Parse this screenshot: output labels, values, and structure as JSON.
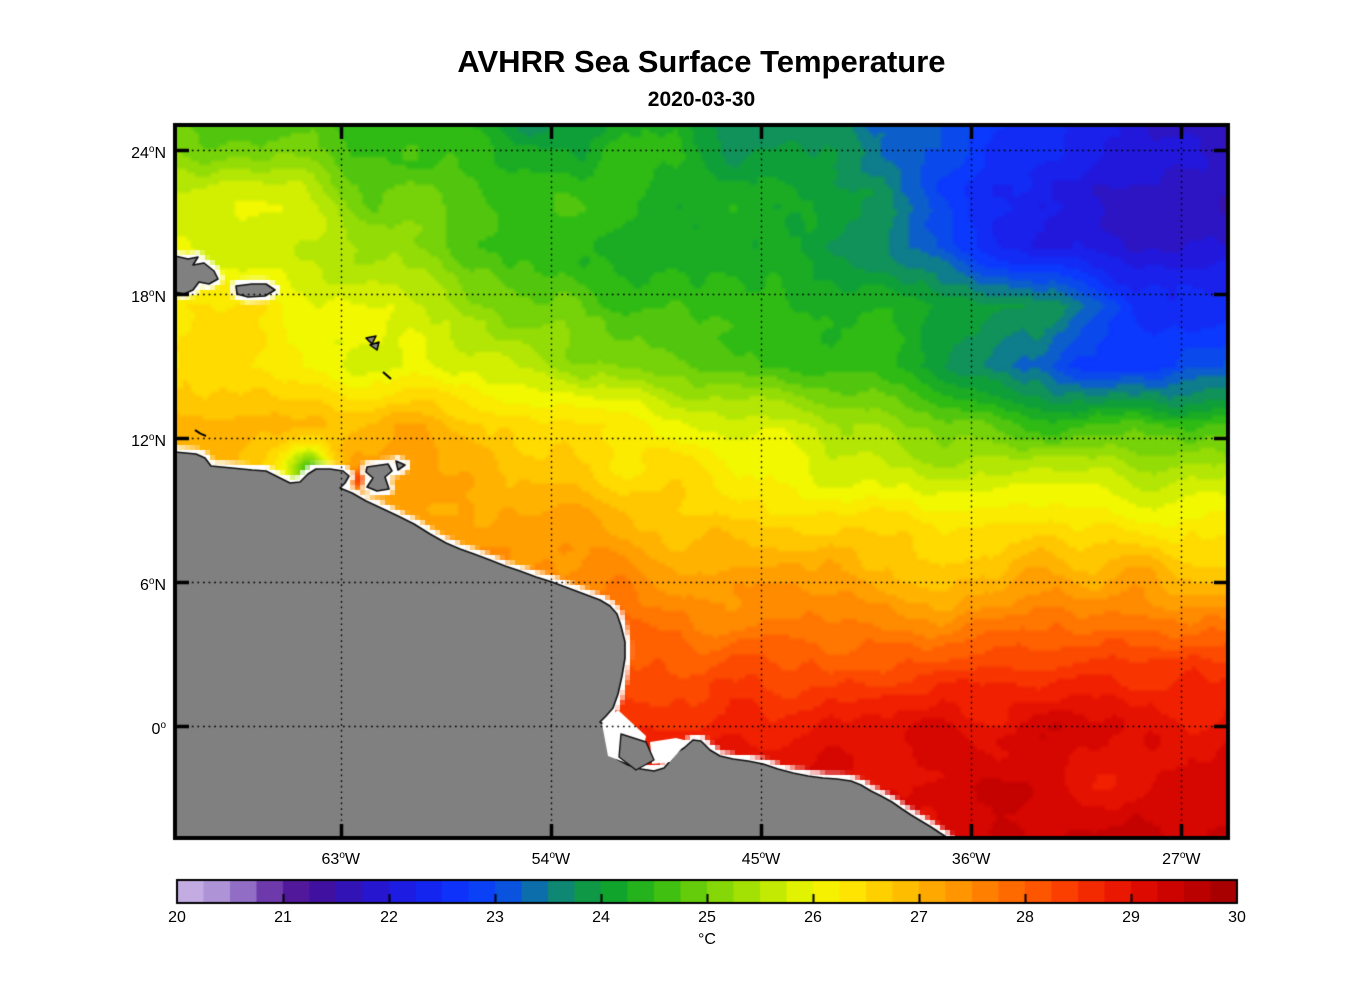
{
  "chart_data": {
    "type": "heatmap",
    "title": "AVHRR Sea Surface Temperature",
    "subtitle": "2020-03-30",
    "grid_on": true,
    "lon_range": [
      -70.1,
      -25.0
    ],
    "lat_range": [
      -4.65,
      25.05
    ],
    "x_axis": {
      "ticks": [
        {
          "value": -63,
          "text": "63°W",
          "pre": "63",
          "sup": "o",
          "post": "W"
        },
        {
          "value": -54,
          "text": "54°W",
          "pre": "54",
          "sup": "o",
          "post": "W"
        },
        {
          "value": -45,
          "text": "45°W",
          "pre": "45",
          "sup": "o",
          "post": "W"
        },
        {
          "value": -36,
          "text": "36°W",
          "pre": "36",
          "sup": "o",
          "post": "W"
        },
        {
          "value": -27,
          "text": "27°W",
          "pre": "27",
          "sup": "o",
          "post": "W"
        }
      ]
    },
    "y_axis": {
      "ticks": [
        {
          "value": 24,
          "text": "24°N",
          "pre": "24",
          "sup": "o",
          "post": "N"
        },
        {
          "value": 18,
          "text": "18°N",
          "pre": "18",
          "sup": "o",
          "post": "N"
        },
        {
          "value": 12,
          "text": "12°N",
          "pre": "12",
          "sup": "o",
          "post": "N"
        },
        {
          "value": 6,
          "text": "6°N",
          "pre": "6",
          "sup": "o",
          "post": "N"
        },
        {
          "value": 0,
          "text": "0°",
          "pre": "0",
          "sup": "o",
          "post": ""
        }
      ]
    },
    "colorbar": {
      "unit": "°C",
      "min": 20,
      "max": 30,
      "step": 0.25,
      "tick_values": [
        20,
        21,
        22,
        23,
        24,
        25,
        26,
        27,
        28,
        29,
        30
      ],
      "tick_labels": [
        "20",
        "21",
        "22",
        "23",
        "24",
        "25",
        "26",
        "27",
        "28",
        "29",
        "30"
      ],
      "stops": [
        [
          20.0,
          "#cdb9e6"
        ],
        [
          20.5,
          "#a487d2"
        ],
        [
          21.0,
          "#5b1f9e"
        ],
        [
          21.3,
          "#45109b"
        ],
        [
          21.6,
          "#3413b4"
        ],
        [
          22.0,
          "#2218dc"
        ],
        [
          22.4,
          "#1526f2"
        ],
        [
          22.8,
          "#0a3cff"
        ],
        [
          23.2,
          "#0b59d8"
        ],
        [
          23.5,
          "#0e7d8c"
        ],
        [
          23.8,
          "#109650"
        ],
        [
          24.1,
          "#0fa32e"
        ],
        [
          24.5,
          "#2fbb14"
        ],
        [
          25.0,
          "#76d209"
        ],
        [
          25.5,
          "#b3e604"
        ],
        [
          26.0,
          "#f2f800"
        ],
        [
          26.4,
          "#ffe300"
        ],
        [
          26.8,
          "#ffc300"
        ],
        [
          27.2,
          "#ffa300"
        ],
        [
          27.6,
          "#ff8300"
        ],
        [
          28.0,
          "#ff6000"
        ],
        [
          28.4,
          "#fb3d00"
        ],
        [
          28.8,
          "#ee1c00"
        ],
        [
          29.2,
          "#da0700"
        ],
        [
          29.6,
          "#bd0000"
        ],
        [
          30.0,
          "#9f0000"
        ]
      ]
    },
    "sst_grid": {
      "lons": [
        -70,
        -67.5,
        -65,
        -62.5,
        -60,
        -57.5,
        -55,
        -52.5,
        -50,
        -47.5,
        -45,
        -42.5,
        -40,
        -37.5,
        -35,
        -32.5,
        -30,
        -27.5,
        -25
      ],
      "lats": [
        25,
        22.5,
        20,
        17.5,
        15,
        12.5,
        10,
        7.5,
        5,
        2.5,
        0,
        -2.5,
        -5
      ],
      "values_degC": [
        [
          24.9,
          24.7,
          24.8,
          24.4,
          24.5,
          24.3,
          23.9,
          24.0,
          24.3,
          24.0,
          23.9,
          23.7,
          23.5,
          23.2,
          22.6,
          22.3,
          22.0,
          21.8,
          21.6
        ],
        [
          25.6,
          25.8,
          25.6,
          25.0,
          24.8,
          24.6,
          24.5,
          24.4,
          24.3,
          24.2,
          24.1,
          23.9,
          23.7,
          22.9,
          22.4,
          22.1,
          21.9,
          21.8,
          21.7
        ],
        [
          26.0,
          25.9,
          25.8,
          25.5,
          25.1,
          24.7,
          24.6,
          24.5,
          24.3,
          24.2,
          24.1,
          24.0,
          23.8,
          23.2,
          22.5,
          22.2,
          22.0,
          21.9,
          21.8
        ],
        [
          26.4,
          26.3,
          26.1,
          25.8,
          25.6,
          25.3,
          25.0,
          24.7,
          24.5,
          24.4,
          24.3,
          24.3,
          24.2,
          24.1,
          24.0,
          23.8,
          23.0,
          22.7,
          22.6
        ],
        [
          26.3,
          26.2,
          26.0,
          25.9,
          25.8,
          25.7,
          25.5,
          25.3,
          25.1,
          24.9,
          24.7,
          24.6,
          24.5,
          24.0,
          23.4,
          23.0,
          22.8,
          22.7,
          23.0
        ],
        [
          27.0,
          26.9,
          26.8,
          26.9,
          27.2,
          26.8,
          26.6,
          26.4,
          26.2,
          26.0,
          25.8,
          25.6,
          25.3,
          25.0,
          24.8,
          24.6,
          24.9,
          24.7,
          24.8
        ],
        [
          27.2,
          27.0,
          25.9,
          27.4,
          27.3,
          27.2,
          27.0,
          26.8,
          26.6,
          26.4,
          26.2,
          26.0,
          25.9,
          25.8,
          25.7,
          25.8,
          25.9,
          25.7,
          25.8
        ],
        [
          27.4,
          27.4,
          27.4,
          27.5,
          27.6,
          27.4,
          27.3,
          27.3,
          27.1,
          27.0,
          26.9,
          26.8,
          26.7,
          26.6,
          26.6,
          26.7,
          26.8,
          26.6,
          26.5
        ],
        [
          27.8,
          27.8,
          27.8,
          27.8,
          27.8,
          27.8,
          27.8,
          27.9,
          27.6,
          27.4,
          27.6,
          27.4,
          27.3,
          27.2,
          27.3,
          27.4,
          27.5,
          27.3,
          27.4
        ],
        [
          28.2,
          28.2,
          28.2,
          28.2,
          28.2,
          28.2,
          28.2,
          28.2,
          28.3,
          28.0,
          28.2,
          28.1,
          28.0,
          28.2,
          28.3,
          28.4,
          28.6,
          28.4,
          28.5
        ],
        [
          28.8,
          28.8,
          28.8,
          28.8,
          28.8,
          28.8,
          28.8,
          28.8,
          28.8,
          28.7,
          28.8,
          28.9,
          29.0,
          29.1,
          29.0,
          29.2,
          29.0,
          28.9,
          29.1
        ],
        [
          29.2,
          29.2,
          29.2,
          29.2,
          29.2,
          29.2,
          29.2,
          29.2,
          29.2,
          29.2,
          29.2,
          29.2,
          29.2,
          29.3,
          29.5,
          29.2,
          29.0,
          29.3,
          29.2
        ],
        [
          29.2,
          29.2,
          29.2,
          29.2,
          29.2,
          29.2,
          29.2,
          29.2,
          29.2,
          29.2,
          29.2,
          29.2,
          29.2,
          29.2,
          29.4,
          29.3,
          29.5,
          29.3,
          29.5
        ]
      ]
    },
    "anomalies": [
      {
        "lon": -64.3,
        "lat": 10.8,
        "amplitude_degC": -1.6,
        "radius_deg": 0.55
      },
      {
        "lon": -62.2,
        "lat": 10.3,
        "amplitude_degC": 1.0,
        "radius_deg": 0.3
      }
    ],
    "land_color": "#808080",
    "land_outline_color": "#111111",
    "coast_halo_color": "#ffffff"
  }
}
